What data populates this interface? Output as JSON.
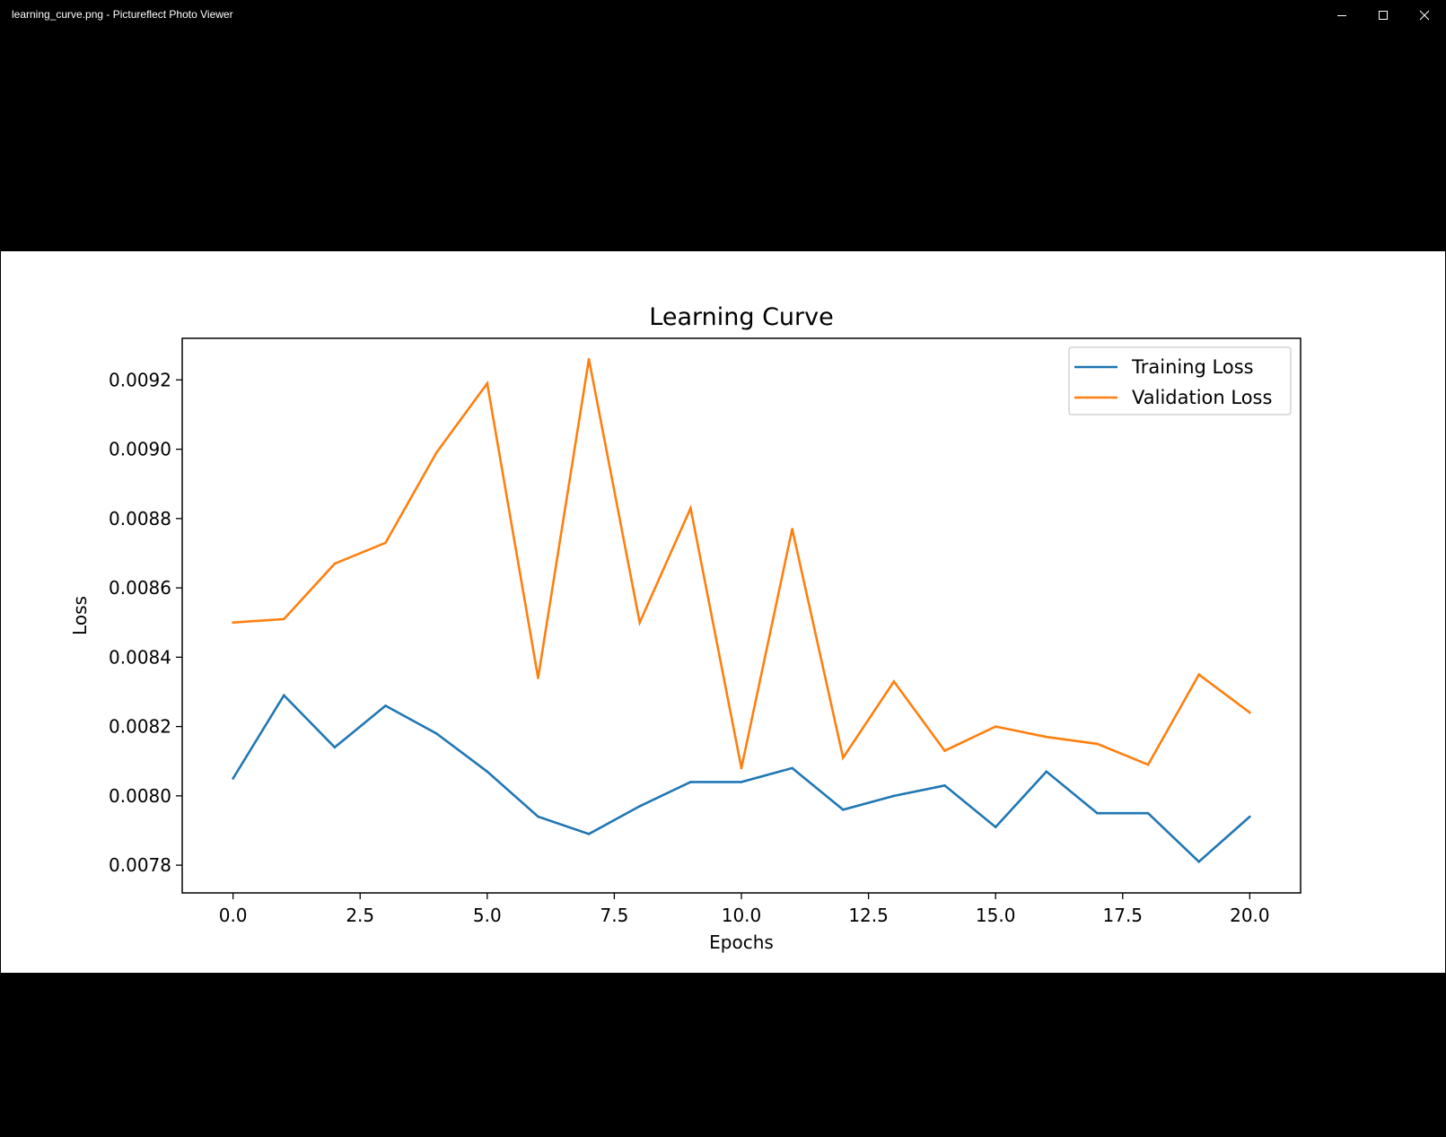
{
  "window": {
    "title": "learning_curve.png - Pictureflect Photo Viewer",
    "controls": {
      "minimize": "minimize-icon",
      "maximize": "maximize-icon",
      "close": "close-icon"
    }
  },
  "colors": {
    "background": "#000000",
    "training": "#1f77b4",
    "validation": "#ff7f0e"
  },
  "chart_data": {
    "type": "line",
    "title": "Learning Curve",
    "xlabel": "Epochs",
    "ylabel": "Loss",
    "x": [
      0,
      1,
      2,
      3,
      4,
      5,
      6,
      7,
      8,
      9,
      10,
      11,
      12,
      13,
      14,
      15,
      16,
      17,
      18,
      19,
      20
    ],
    "xlim": [
      -1,
      21
    ],
    "ylim": [
      0.00772,
      0.00932
    ],
    "xticks": [
      "0.0",
      "2.5",
      "5.0",
      "7.5",
      "10.0",
      "12.5",
      "15.0",
      "17.5",
      "20.0"
    ],
    "xtick_values": [
      0,
      2.5,
      5,
      7.5,
      10,
      12.5,
      15,
      17.5,
      20
    ],
    "yticks": [
      "0.0078",
      "0.0080",
      "0.0082",
      "0.0084",
      "0.0086",
      "0.0088",
      "0.0090",
      "0.0092"
    ],
    "ytick_values": [
      0.0078,
      0.008,
      0.0082,
      0.0084,
      0.0086,
      0.0088,
      0.009,
      0.0092
    ],
    "grid": false,
    "legend_position": "top-right",
    "series": [
      {
        "name": "Training Loss",
        "color": "#1f77b4",
        "values": [
          0.00805,
          0.00829,
          0.00814,
          0.00826,
          0.00818,
          0.00807,
          0.00794,
          0.00789,
          0.00797,
          0.00804,
          0.00804,
          0.00808,
          0.00796,
          0.008,
          0.00803,
          0.00791,
          0.00807,
          0.00795,
          0.00795,
          0.00781,
          0.00794
        ]
      },
      {
        "name": "Validation Loss",
        "color": "#ff7f0e",
        "values": [
          0.0085,
          0.00851,
          0.00867,
          0.00873,
          0.00899,
          0.00919,
          0.00834,
          0.00926,
          0.0085,
          0.00883,
          0.00808,
          0.00877,
          0.00811,
          0.00833,
          0.00813,
          0.0082,
          0.00817,
          0.00815,
          0.00809,
          0.00835,
          0.00824
        ]
      }
    ]
  }
}
